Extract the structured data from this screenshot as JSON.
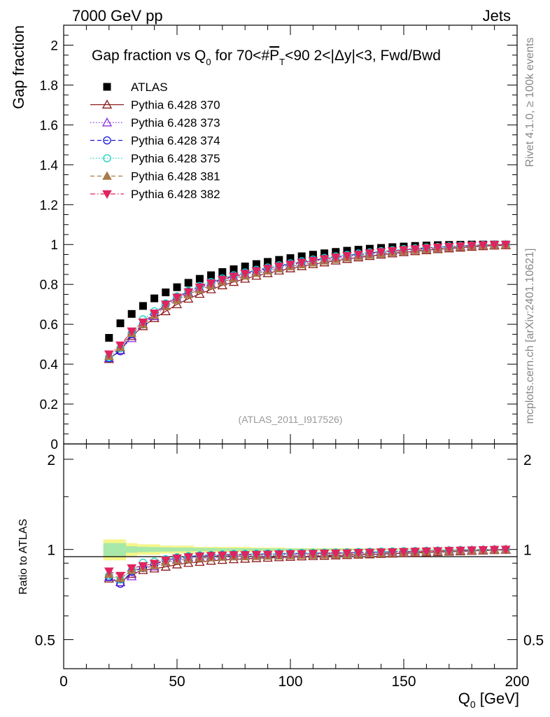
{
  "header": {
    "left": "7000 GeV pp",
    "right": "Jets"
  },
  "side_labels": {
    "rivet": "Rivet 4.1.0, ≥ 100k events",
    "mcplots": "mcplots.cern.ch [arXiv:2401.10621]"
  },
  "watermark": "(ATLAS_2011_I917526)",
  "colors": {
    "ATLAS": "#000000",
    "s370": "#8b1a1a",
    "s373": "#8a2be2",
    "s374": "#1a1ad6",
    "s375": "#19d2c0",
    "s381": "#a87a4a",
    "s382": "#e0245e",
    "band_yellow": "#f5f58a",
    "band_green": "#a8e8a8"
  },
  "chart_data": [
    {
      "id": "main",
      "type": "scatter",
      "title": "Gap fraction vs Q₀ for 70<#P̅_T<90  2<|Δy|<3, Fwd/Bwd",
      "title_parts": {
        "pre": "Gap fraction vs Q",
        "sub0": "0",
        "mid": " for 70<#",
        "p": "P",
        "subT": "T",
        "post": "<90  2<|Δy|<3, Fwd/Bwd"
      },
      "ylabel": "Gap fraction",
      "xlim": [
        0,
        200
      ],
      "ylim": [
        0,
        2.1
      ],
      "yticks": [
        0,
        0.2,
        0.4,
        0.6,
        0.8,
        1,
        1.2,
        1.4,
        1.6,
        1.8,
        2
      ],
      "ytick_labels": [
        "0",
        "0.2",
        "0.4",
        "0.6",
        "0.8",
        "1",
        "1.2",
        "1.4",
        "1.6",
        "1.8",
        "2"
      ],
      "x": [
        20,
        25,
        30,
        35,
        40,
        45,
        50,
        55,
        60,
        65,
        70,
        75,
        80,
        85,
        90,
        95,
        100,
        105,
        110,
        115,
        120,
        125,
        130,
        135,
        140,
        145,
        150,
        155,
        160,
        165,
        170,
        175,
        180,
        185,
        190,
        195
      ],
      "legend_position": "top-left",
      "series": [
        {
          "name": "ATLAS",
          "key": "ATLAS",
          "marker": "square",
          "line": "none",
          "values": [
            0.532,
            0.605,
            0.652,
            0.692,
            0.73,
            0.76,
            0.786,
            0.808,
            0.828,
            0.846,
            0.862,
            0.876,
            0.89,
            0.902,
            0.913,
            0.923,
            0.932,
            0.941,
            0.949,
            0.956,
            0.963,
            0.969,
            0.974,
            0.979,
            0.983,
            0.987,
            0.99,
            0.993,
            0.995,
            0.997,
            0.998,
            0.999,
            1.0,
            1.0,
            1.0,
            1.0
          ]
        },
        {
          "name": "Pythia 6.428 370",
          "key": "s370",
          "marker": "triangle-up-open",
          "line": "solid",
          "values": [
            0.425,
            0.47,
            0.54,
            0.59,
            0.63,
            0.665,
            0.7,
            0.728,
            0.752,
            0.775,
            0.795,
            0.812,
            0.828,
            0.843,
            0.856,
            0.869,
            0.88,
            0.891,
            0.901,
            0.91,
            0.919,
            0.927,
            0.935,
            0.942,
            0.949,
            0.955,
            0.961,
            0.966,
            0.971,
            0.976,
            0.98,
            0.984,
            0.988,
            0.991,
            0.994,
            0.996
          ]
        },
        {
          "name": "Pythia 6.428 373",
          "key": "s373",
          "marker": "triangle-up-open",
          "line": "dotted",
          "values": [
            0.43,
            0.47,
            0.53,
            0.6,
            0.64,
            0.69,
            0.728,
            0.758,
            0.782,
            0.802,
            0.82,
            0.836,
            0.85,
            0.863,
            0.875,
            0.886,
            0.897,
            0.907,
            0.916,
            0.924,
            0.932,
            0.94,
            0.947,
            0.954,
            0.96,
            0.966,
            0.971,
            0.976,
            0.98,
            0.984,
            0.988,
            0.991,
            0.994,
            0.996,
            0.998,
            0.999
          ]
        },
        {
          "name": "Pythia 6.428 374",
          "key": "s374",
          "marker": "circle-open",
          "line": "dashed",
          "values": [
            0.43,
            0.465,
            0.55,
            0.6,
            0.65,
            0.7,
            0.735,
            0.765,
            0.79,
            0.81,
            0.828,
            0.843,
            0.857,
            0.87,
            0.882,
            0.893,
            0.903,
            0.913,
            0.922,
            0.93,
            0.938,
            0.945,
            0.952,
            0.958,
            0.964,
            0.969,
            0.974,
            0.979,
            0.983,
            0.987,
            0.99,
            0.993,
            0.995,
            0.997,
            0.999,
            1.0
          ]
        },
        {
          "name": "Pythia 6.428 375",
          "key": "s375",
          "marker": "circle-open",
          "line": "dotted",
          "values": [
            0.435,
            0.48,
            0.555,
            0.625,
            0.665,
            0.705,
            0.74,
            0.768,
            0.792,
            0.812,
            0.83,
            0.846,
            0.86,
            0.873,
            0.885,
            0.896,
            0.906,
            0.916,
            0.925,
            0.933,
            0.941,
            0.948,
            0.955,
            0.961,
            0.967,
            0.972,
            0.977,
            0.981,
            0.985,
            0.988,
            0.991,
            0.994,
            0.996,
            0.998,
            0.999,
            1.0
          ]
        },
        {
          "name": "Pythia 6.428 381",
          "key": "s381",
          "marker": "triangle-up-filled",
          "line": "dashed",
          "values": [
            0.44,
            0.485,
            0.555,
            0.6,
            0.645,
            0.69,
            0.722,
            0.75,
            0.774,
            0.795,
            0.813,
            0.829,
            0.843,
            0.856,
            0.868,
            0.879,
            0.89,
            0.9,
            0.909,
            0.918,
            0.926,
            0.934,
            0.941,
            0.948,
            0.954,
            0.96,
            0.966,
            0.971,
            0.976,
            0.98,
            0.984,
            0.988,
            0.991,
            0.994,
            0.996,
            0.998
          ]
        },
        {
          "name": "Pythia 6.428 382",
          "key": "s382",
          "marker": "triangle-down-filled",
          "line": "dashdot",
          "values": [
            0.45,
            0.495,
            0.565,
            0.61,
            0.655,
            0.7,
            0.735,
            0.762,
            0.786,
            0.806,
            0.824,
            0.84,
            0.854,
            0.867,
            0.879,
            0.89,
            0.9,
            0.91,
            0.919,
            0.928,
            0.936,
            0.943,
            0.95,
            0.957,
            0.963,
            0.968,
            0.973,
            0.978,
            0.982,
            0.986,
            0.989,
            0.992,
            0.995,
            0.997,
            0.999,
            1.0
          ]
        }
      ]
    },
    {
      "id": "ratio",
      "type": "scatter",
      "ylabel": "Ratio to ATLAS",
      "xlabel": "Q₀ [GeV]",
      "xlabel_parts": {
        "pre": "Q",
        "sub": "0",
        "post": " [GeV]"
      },
      "ylim": [
        0.4,
        2.25
      ],
      "yscale": "log",
      "yticks": [
        0.5,
        1,
        2
      ],
      "ytick_labels": [
        "0.5",
        "1",
        "2"
      ],
      "xticks": [
        0,
        50,
        100,
        150,
        200
      ],
      "xtick_labels": [
        "0",
        "50",
        "100",
        "150",
        "200"
      ],
      "band_half_width_yellow": [
        0.08,
        0.08,
        0.05,
        0.04,
        0.04,
        0.03,
        0.03,
        0.03,
        0.02,
        0.02,
        0.02,
        0.02,
        0.02,
        0.015,
        0.015,
        0.015,
        0.01,
        0.01,
        0.01,
        0.01,
        0.01,
        0.01,
        0.008,
        0.008,
        0.008,
        0.008,
        0.006,
        0.006,
        0.006,
        0.005,
        0.005,
        0.005,
        0.004,
        0.004,
        0.004,
        0.004
      ],
      "band_half_width_green": [
        0.05,
        0.05,
        0.025,
        0.02,
        0.018,
        0.016,
        0.015,
        0.014,
        0.012,
        0.011,
        0.01,
        0.01,
        0.009,
        0.009,
        0.008,
        0.008,
        0.007,
        0.007,
        0.006,
        0.006,
        0.006,
        0.005,
        0.005,
        0.005,
        0.004,
        0.004,
        0.004,
        0.004,
        0.003,
        0.003,
        0.003,
        0.003,
        0.003,
        0.003,
        0.003,
        0.003
      ]
    }
  ]
}
